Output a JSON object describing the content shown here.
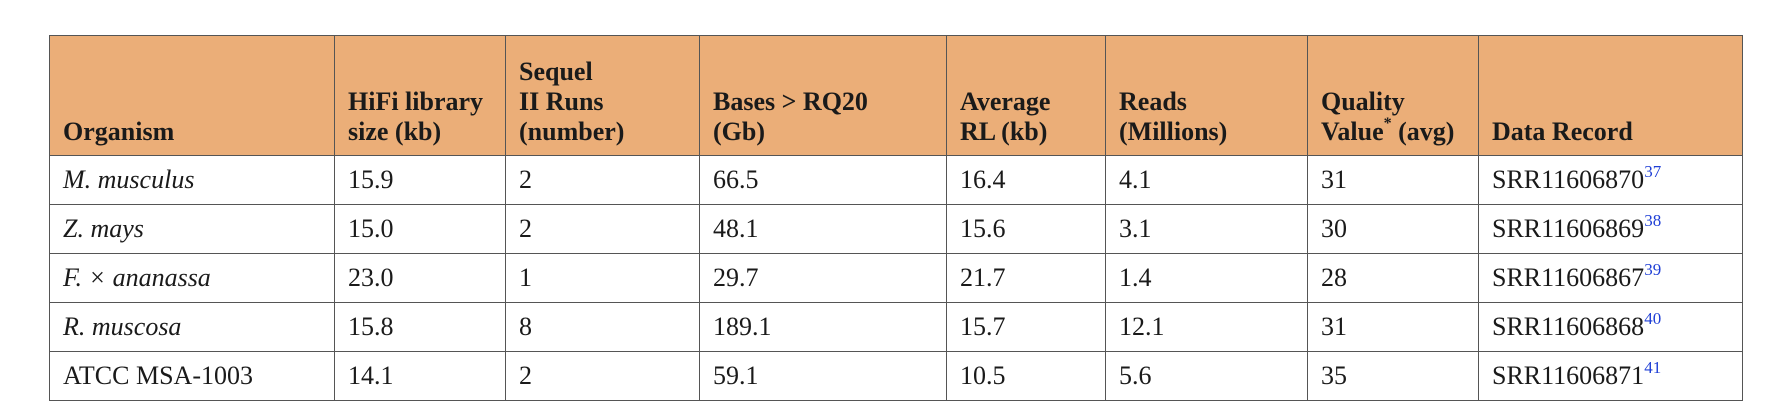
{
  "table": {
    "headers": [
      {
        "lines": [
          "Organism"
        ]
      },
      {
        "lines": [
          "HiFi library",
          "size (kb)"
        ]
      },
      {
        "lines": [
          "Sequel",
          "II Runs",
          "(number)"
        ]
      },
      {
        "lines": [
          "Bases > RQ20",
          "(Gb)"
        ]
      },
      {
        "lines": [
          "Average",
          "RL (kb)"
        ]
      },
      {
        "lines": [
          "Reads",
          "(Millions)"
        ]
      },
      {
        "lines": [
          "Quality",
          "Value",
          " (avg)"
        ],
        "footnote_mark": "*"
      },
      {
        "lines": [
          "Data Record"
        ]
      }
    ],
    "rows": [
      {
        "organism": "M. musculus",
        "italic": true,
        "library_size": "15.9",
        "runs": "2",
        "bases": "66.5",
        "avg_rl": "16.4",
        "reads": "4.1",
        "qv": "31",
        "record": "SRR11606870",
        "ref": "37"
      },
      {
        "organism": "Z. mays",
        "italic": true,
        "library_size": "15.0",
        "runs": "2",
        "bases": "48.1",
        "avg_rl": "15.6",
        "reads": "3.1",
        "qv": "30",
        "record": "SRR11606869",
        "ref": "38"
      },
      {
        "organism": "F. × ananassa",
        "italic": true,
        "library_size": "23.0",
        "runs": "1",
        "bases": "29.7",
        "avg_rl": "21.7",
        "reads": "1.4",
        "qv": "28",
        "record": "SRR11606867",
        "ref": "39"
      },
      {
        "organism": "R. muscosa",
        "italic": true,
        "library_size": "15.8",
        "runs": "8",
        "bases": "189.1",
        "avg_rl": "15.7",
        "reads": "12.1",
        "qv": "31",
        "record": "SRR11606868",
        "ref": "40"
      },
      {
        "organism": "ATCC MSA-1003",
        "italic": false,
        "library_size": "14.1",
        "runs": "2",
        "bases": "59.1",
        "avg_rl": "10.5",
        "reads": "5.6",
        "qv": "35",
        "record": "SRR11606871",
        "ref": "41"
      }
    ]
  },
  "colors": {
    "header_bg": "#ebae78",
    "reference_link": "#1f3fd6",
    "border": "#555555"
  }
}
